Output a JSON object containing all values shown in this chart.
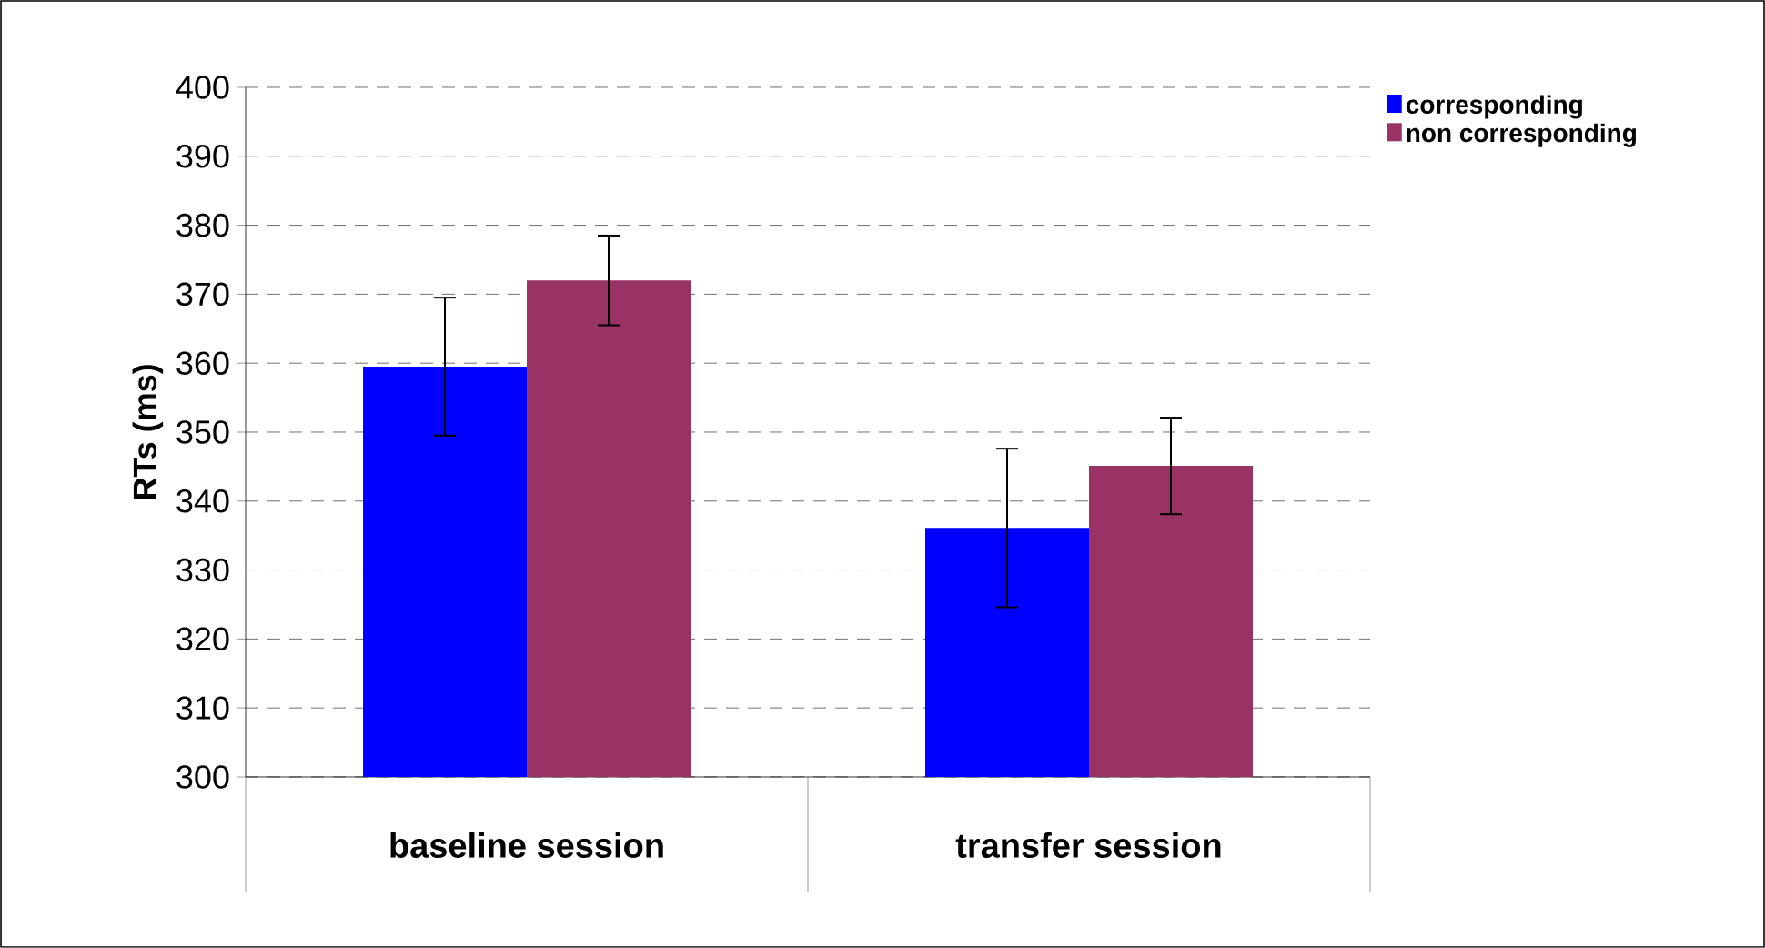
{
  "chart_data": {
    "type": "bar",
    "ylabel": "RTs (ms)",
    "categories": [
      "baseline session",
      "transfer session"
    ],
    "series": [
      {
        "name": "corresponding",
        "color": "#0000ff",
        "values": [
          359.5,
          336.1
        ],
        "errors": [
          10,
          11.5
        ]
      },
      {
        "name": "non corresponding",
        "color": "#993366",
        "values": [
          372.0,
          345.1
        ],
        "errors": [
          6.5,
          7
        ]
      }
    ],
    "ylim": [
      300,
      400
    ],
    "yticks": [
      300,
      310,
      320,
      330,
      340,
      350,
      360,
      370,
      380,
      390,
      400
    ],
    "grid": "y",
    "legend": "top right"
  }
}
